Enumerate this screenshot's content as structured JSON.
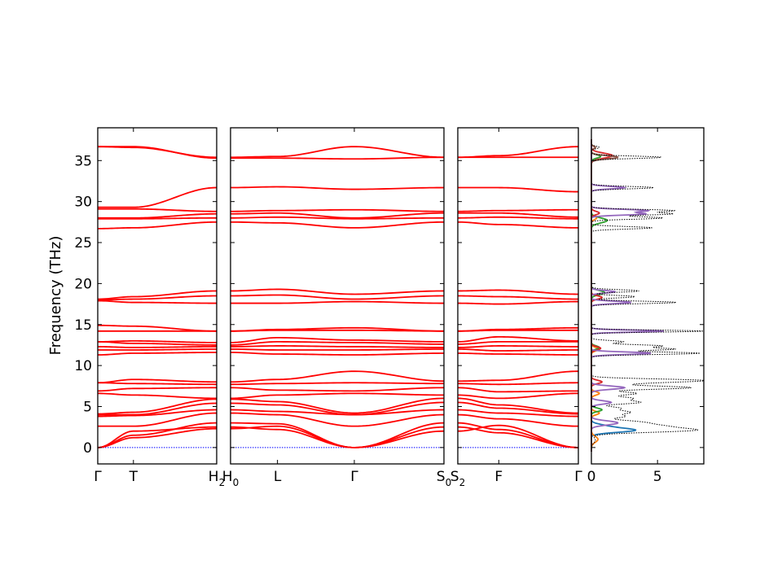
{
  "chart_data": {
    "type": "line",
    "ylabel": "Frequency (THz)",
    "ylim": [
      -2,
      39
    ],
    "yticks": [
      0,
      5,
      10,
      15,
      20,
      25,
      30,
      35
    ],
    "band_color": "#ff0000",
    "zero_line_color": "#0000ff",
    "panels": [
      {
        "id": "p1",
        "xticks": [
          {
            "x": 0,
            "label": "Γ"
          },
          {
            "x": 0.3,
            "label": "T"
          },
          {
            "x": 1,
            "label": "H",
            "sub": "2"
          }
        ]
      },
      {
        "id": "p2",
        "xticks": [
          {
            "x": 0,
            "label": "H",
            "sub": "0"
          },
          {
            "x": 0.22,
            "label": "L"
          },
          {
            "x": 0.58,
            "label": "Γ"
          },
          {
            "x": 1,
            "label": "S",
            "sub": "0"
          }
        ]
      },
      {
        "id": "p3",
        "xticks": [
          {
            "x": 0,
            "label": "S",
            "sub": "2"
          },
          {
            "x": 0.34,
            "label": "F"
          },
          {
            "x": 1,
            "label": "Γ"
          }
        ]
      }
    ],
    "bands": [
      {
        "p1": [
          0,
          2.0,
          2.5
        ],
        "p2": [
          2.5,
          2.2,
          0,
          2.5
        ],
        "p3": [
          2.5,
          1.8,
          0
        ]
      },
      {
        "p1": [
          0,
          1.2,
          2.3
        ],
        "p2": [
          2.3,
          2.6,
          0,
          3.0
        ],
        "p3": [
          3.0,
          2.2,
          0
        ]
      },
      {
        "p1": [
          0,
          1.5,
          3.0
        ],
        "p2": [
          3.0,
          2.9,
          0,
          2.0
        ],
        "p3": [
          2.0,
          2.7,
          0
        ]
      },
      {
        "p1": [
          2.6,
          2.6,
          4.2
        ],
        "p2": [
          4.2,
          4.0,
          2.6,
          4.0
        ],
        "p3": [
          4.0,
          3.5,
          2.6
        ]
      },
      {
        "p1": [
          3.8,
          3.9,
          4.6
        ],
        "p2": [
          4.6,
          4.4,
          4.0,
          4.6
        ],
        "p3": [
          4.6,
          4.2,
          3.8
        ]
      },
      {
        "p1": [
          4.0,
          4.0,
          5.4
        ],
        "p2": [
          5.4,
          5.2,
          4.0,
          5.5
        ],
        "p3": [
          5.5,
          4.8,
          4.1
        ]
      },
      {
        "p1": [
          4.1,
          4.3,
          5.9
        ],
        "p2": [
          5.9,
          5.6,
          4.2,
          6.0
        ],
        "p3": [
          6.0,
          5.2,
          4.2
        ]
      },
      {
        "p1": [
          6.6,
          6.4,
          6.0
        ],
        "p2": [
          6.0,
          6.4,
          6.6,
          6.4
        ],
        "p3": [
          6.4,
          6.0,
          6.6
        ]
      },
      {
        "p1": [
          6.9,
          7.2,
          7.3
        ],
        "p2": [
          7.3,
          7.0,
          6.9,
          7.3
        ],
        "p3": [
          7.3,
          6.8,
          6.9
        ]
      },
      {
        "p1": [
          7.9,
          7.8,
          7.7
        ],
        "p2": [
          7.7,
          7.8,
          7.9,
          7.8
        ],
        "p3": [
          7.8,
          7.7,
          7.9
        ]
      },
      {
        "p1": [
          7.9,
          8.3,
          8.0
        ],
        "p2": [
          8.0,
          8.3,
          9.3,
          8.1
        ],
        "p3": [
          8.1,
          8.2,
          9.3
        ]
      },
      {
        "p1": [
          11.3,
          11.5,
          11.6
        ],
        "p2": [
          11.6,
          11.4,
          11.3,
          11.5
        ],
        "p3": [
          11.5,
          11.4,
          11.3
        ]
      },
      {
        "p1": [
          11.9,
          11.9,
          12.0
        ],
        "p2": [
          12.0,
          11.9,
          11.9,
          12.0
        ],
        "p3": [
          12.0,
          11.8,
          11.9
        ]
      },
      {
        "p1": [
          12.3,
          12.2,
          12.3
        ],
        "p2": [
          12.3,
          12.4,
          12.3,
          12.2
        ],
        "p3": [
          12.2,
          12.4,
          12.3
        ]
      },
      {
        "p1": [
          12.9,
          12.7,
          12.5
        ],
        "p2": [
          12.5,
          12.9,
          12.8,
          12.6
        ],
        "p3": [
          12.6,
          12.9,
          12.9
        ]
      },
      {
        "p1": [
          12.9,
          13.0,
          12.8
        ],
        "p2": [
          12.8,
          13.4,
          13.1,
          12.9
        ],
        "p3": [
          12.9,
          13.5,
          13.0
        ]
      },
      {
        "p1": [
          14.2,
          14.2,
          14.2
        ],
        "p2": [
          14.2,
          14.3,
          14.3,
          14.2
        ],
        "p3": [
          14.2,
          14.3,
          14.3
        ]
      },
      {
        "p1": [
          14.9,
          14.8,
          14.2
        ],
        "p2": [
          14.2,
          14.4,
          14.6,
          14.2
        ],
        "p3": [
          14.2,
          14.4,
          14.6
        ]
      },
      {
        "p1": [
          17.9,
          17.7,
          17.6
        ],
        "p2": [
          17.6,
          17.6,
          17.8,
          17.6
        ],
        "p3": [
          17.6,
          17.5,
          17.8
        ]
      },
      {
        "p1": [
          18.0,
          18.1,
          18.5
        ],
        "p2": [
          18.5,
          18.6,
          18.1,
          18.5
        ],
        "p3": [
          18.5,
          18.4,
          18.1
        ]
      },
      {
        "p1": [
          18.1,
          18.4,
          19.1
        ],
        "p2": [
          19.1,
          19.3,
          18.7,
          19.1
        ],
        "p3": [
          19.1,
          19.2,
          18.7
        ]
      },
      {
        "p1": [
          26.7,
          26.8,
          27.5
        ],
        "p2": [
          27.5,
          27.4,
          26.8,
          27.5
        ],
        "p3": [
          27.5,
          27.2,
          26.8
        ]
      },
      {
        "p1": [
          27.9,
          27.9,
          28.0
        ],
        "p2": [
          28.0,
          28.1,
          27.9,
          28.0
        ],
        "p3": [
          28.0,
          28.1,
          27.9
        ]
      },
      {
        "p1": [
          28.0,
          28.0,
          28.5
        ],
        "p2": [
          28.5,
          28.6,
          28.0,
          28.6
        ],
        "p3": [
          28.6,
          28.6,
          28.1
        ]
      },
      {
        "p1": [
          29.1,
          29.1,
          28.8
        ],
        "p2": [
          28.8,
          28.9,
          29.0,
          28.8
        ],
        "p3": [
          28.8,
          28.9,
          29.0
        ]
      },
      {
        "p1": [
          29.3,
          29.3,
          31.7
        ],
        "p2": [
          31.7,
          31.8,
          31.5,
          31.7
        ],
        "p3": [
          31.7,
          31.7,
          31.2
        ]
      },
      {
        "p1": [
          36.7,
          36.6,
          35.4
        ],
        "p2": [
          35.4,
          35.5,
          36.7,
          35.4
        ],
        "p3": [
          35.4,
          35.6,
          36.7
        ]
      },
      {
        "p1": [
          36.7,
          36.7,
          35.3
        ],
        "p2": [
          35.3,
          35.3,
          35.2,
          35.4
        ],
        "p3": [
          35.4,
          35.4,
          35.4
        ]
      }
    ],
    "dos": {
      "xlim": [
        0,
        8.5
      ],
      "xticks": [
        0,
        5
      ],
      "total_color": "#000000",
      "peaks": [
        {
          "f": 0.9,
          "w": 0.35,
          "h": 0.3
        },
        {
          "f": 2.1,
          "w": 0.25,
          "h": 7.3
        },
        {
          "f": 2.6,
          "w": 0.25,
          "h": 4.5
        },
        {
          "f": 3.1,
          "w": 0.25,
          "h": 3.4
        },
        {
          "f": 3.8,
          "w": 0.2,
          "h": 2.4
        },
        {
          "f": 4.3,
          "w": 0.2,
          "h": 2.8
        },
        {
          "f": 4.8,
          "w": 0.2,
          "h": 2.1
        },
        {
          "f": 5.5,
          "w": 0.2,
          "h": 3.6
        },
        {
          "f": 6.0,
          "w": 0.2,
          "h": 3.0
        },
        {
          "f": 6.6,
          "w": 0.2,
          "h": 3.4
        },
        {
          "f": 7.3,
          "w": 0.2,
          "h": 7.5
        },
        {
          "f": 7.9,
          "w": 0.2,
          "h": 3.2
        },
        {
          "f": 8.2,
          "w": 0.18,
          "h": 7.4
        },
        {
          "f": 11.5,
          "w": 0.15,
          "h": 8.2
        },
        {
          "f": 12.0,
          "w": 0.15,
          "h": 6.2
        },
        {
          "f": 12.4,
          "w": 0.15,
          "h": 5.2
        },
        {
          "f": 12.9,
          "w": 0.15,
          "h": 2.4
        },
        {
          "f": 14.2,
          "w": 0.12,
          "h": 8.5
        },
        {
          "f": 17.7,
          "w": 0.15,
          "h": 6.4
        },
        {
          "f": 18.4,
          "w": 0.15,
          "h": 3.3
        },
        {
          "f": 19.1,
          "w": 0.15,
          "h": 3.6
        },
        {
          "f": 26.8,
          "w": 0.15,
          "h": 4.6
        },
        {
          "f": 28.0,
          "w": 0.15,
          "h": 5.4
        },
        {
          "f": 28.5,
          "w": 0.15,
          "h": 6.0
        },
        {
          "f": 28.9,
          "w": 0.15,
          "h": 6.1
        },
        {
          "f": 31.7,
          "w": 0.15,
          "h": 4.7
        },
        {
          "f": 35.4,
          "w": 0.15,
          "h": 5.3
        },
        {
          "f": 36.6,
          "w": 0.15,
          "h": 0.6
        }
      ],
      "partial": [
        {
          "color": "#1f77b4",
          "peaks": [
            {
              "f": 2.1,
              "w": 0.25,
              "h": 3.2
            },
            {
              "f": 2.6,
              "w": 0.25,
              "h": 1.0
            }
          ]
        },
        {
          "color": "#ff7f0e",
          "peaks": [
            {
              "f": 1.0,
              "w": 0.35,
              "h": 0.5
            },
            {
              "f": 4.2,
              "w": 0.2,
              "h": 0.6
            },
            {
              "f": 6.6,
              "w": 0.2,
              "h": 0.6
            },
            {
              "f": 12.0,
              "w": 0.2,
              "h": 0.6
            },
            {
              "f": 28.0,
              "w": 0.2,
              "h": 0.4
            },
            {
              "f": 36.6,
              "w": 0.15,
              "h": 0.3
            }
          ]
        },
        {
          "color": "#2ca02c",
          "peaks": [
            {
              "f": 4.6,
              "w": 0.2,
              "h": 0.8
            },
            {
              "f": 12.2,
              "w": 0.2,
              "h": 0.6
            },
            {
              "f": 18.9,
              "w": 0.25,
              "h": 1.0
            },
            {
              "f": 27.7,
              "w": 0.3,
              "h": 1.2
            },
            {
              "f": 35.5,
              "w": 0.2,
              "h": 0.7
            }
          ]
        },
        {
          "color": "#d62728",
          "peaks": [
            {
              "f": 8.0,
              "w": 0.2,
              "h": 0.8
            },
            {
              "f": 12.1,
              "w": 0.2,
              "h": 0.7
            },
            {
              "f": 18.3,
              "w": 0.2,
              "h": 0.8
            },
            {
              "f": 28.6,
              "w": 0.2,
              "h": 0.6
            },
            {
              "f": 35.6,
              "w": 0.3,
              "h": 1.6
            }
          ]
        },
        {
          "color": "#9467bd",
          "peaks": [
            {
              "f": 3.0,
              "w": 0.25,
              "h": 2.0
            },
            {
              "f": 5.5,
              "w": 0.2,
              "h": 1.5
            },
            {
              "f": 7.3,
              "w": 0.2,
              "h": 2.5
            },
            {
              "f": 11.5,
              "w": 0.15,
              "h": 4.5
            },
            {
              "f": 14.2,
              "w": 0.12,
              "h": 5.5
            },
            {
              "f": 17.7,
              "w": 0.15,
              "h": 3.0
            },
            {
              "f": 19.0,
              "w": 0.15,
              "h": 1.8
            },
            {
              "f": 28.5,
              "w": 0.15,
              "h": 4.0
            },
            {
              "f": 28.9,
              "w": 0.15,
              "h": 4.2
            },
            {
              "f": 31.7,
              "w": 0.15,
              "h": 2.5
            }
          ]
        },
        {
          "color": "#8c564b",
          "peaks": [
            {
              "f": 35.4,
              "w": 0.2,
              "h": 2.0
            },
            {
              "f": 36.6,
              "w": 0.15,
              "h": 0.3
            }
          ]
        }
      ]
    }
  }
}
